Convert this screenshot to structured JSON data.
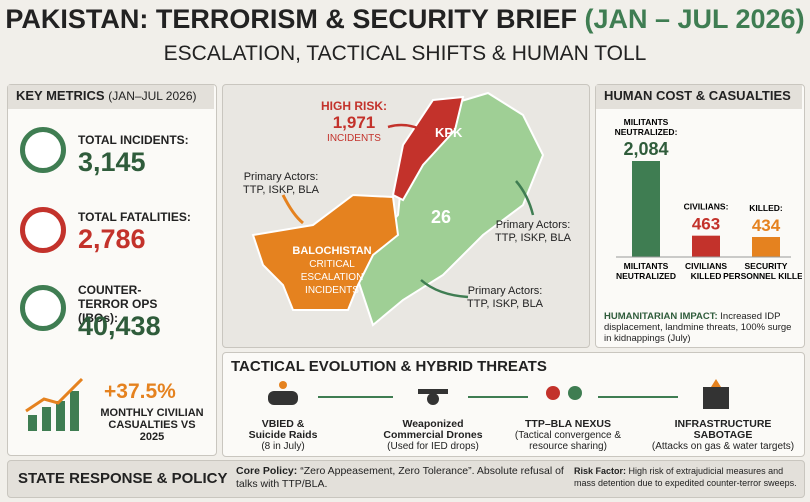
{
  "header": {
    "title": "PAKISTAN: TERRORISM & SECURITY BRIEF",
    "period": "(JAN – JUL 2026)",
    "subtitle": "ESCALATION, TACTICAL SHIFTS & HUMAN TOLL"
  },
  "key_metrics": {
    "heading": "KEY METRICS",
    "period": "(JAN–JUL 2026)",
    "items": [
      {
        "label": "TOTAL INCIDENTS:",
        "value": "3,145"
      },
      {
        "label": "TOTAL FATALITIES:",
        "value": "2,786"
      },
      {
        "label": "COUNTER-TERROR OPS (IBOs):",
        "value": "40,438"
      }
    ],
    "growth": {
      "value": "+37.5%",
      "label": "MONTHLY CIVILIAN CASUALTIES VS 2025"
    }
  },
  "map": {
    "high_risk_label": "HIGH RISK:",
    "high_risk_value": "1,971",
    "high_risk_unit": "INCIDENTS",
    "kpk": "KPK",
    "center_number": "26",
    "balochistan": "BALOCHISTAN",
    "balochistan_note": "CRITICAL ESCALATION INCIDENTS",
    "actors": [
      {
        "label": "Primary Actors:",
        "groups": "TTP, ISKP, BLA"
      },
      {
        "label": "Primary Actors:",
        "groups": "TTP, ISKP, BLA"
      },
      {
        "label": "Primary Actors:",
        "groups": "TTP, ISKP, BLA"
      }
    ]
  },
  "human_cost": {
    "heading": "HUMAN COST & CASUALTIES",
    "chart": {
      "top_labels": [
        "MILITANTS NEUTRALIZED:",
        "CIVILIANS:",
        "KILLED:"
      ],
      "categories": [
        "MILITANTS NEUTRALIZED",
        "CIVILIANS KILLED",
        "SECURITY PERSONNEL KILLED"
      ],
      "values": [
        2084,
        463,
        434
      ],
      "value_labels": [
        "2,084",
        "463",
        "434"
      ],
      "colors": [
        "#3f7d52",
        "#c3322b",
        "#e5821f"
      ]
    },
    "impact_label": "HUMANITARIAN IMPACT:",
    "impact_text": "Increased IDP displacement, landmine threats, 100% surge in kidnappings (July)"
  },
  "tactical": {
    "heading": "TACTICAL EVOLUTION & HYBRID THREATS",
    "items": [
      {
        "title": "VBIED & Suicide Raids",
        "note": "(8 in July)"
      },
      {
        "title": "Weaponized Commercial Drones",
        "note": "(Used for IED drops)"
      },
      {
        "title": "TTP–BLA NEXUS",
        "note": "(Tactical convergence & resource sharing)"
      },
      {
        "title": "INFRASTRUCTURE SABOTAGE",
        "note": "(Attacks on gas & water targets)"
      }
    ]
  },
  "footer": {
    "heading": "STATE RESPONSE & POLICY",
    "policy_label": "Core Policy:",
    "policy_text": "“Zero Appeasement, Zero Tolerance”. Absolute refusal of talks with TTP/BLA.",
    "risk_label": "Risk Factor:",
    "risk_text": "High risk of extrajudicial measures and mass detention due to expedited counter-terror sweeps."
  }
}
